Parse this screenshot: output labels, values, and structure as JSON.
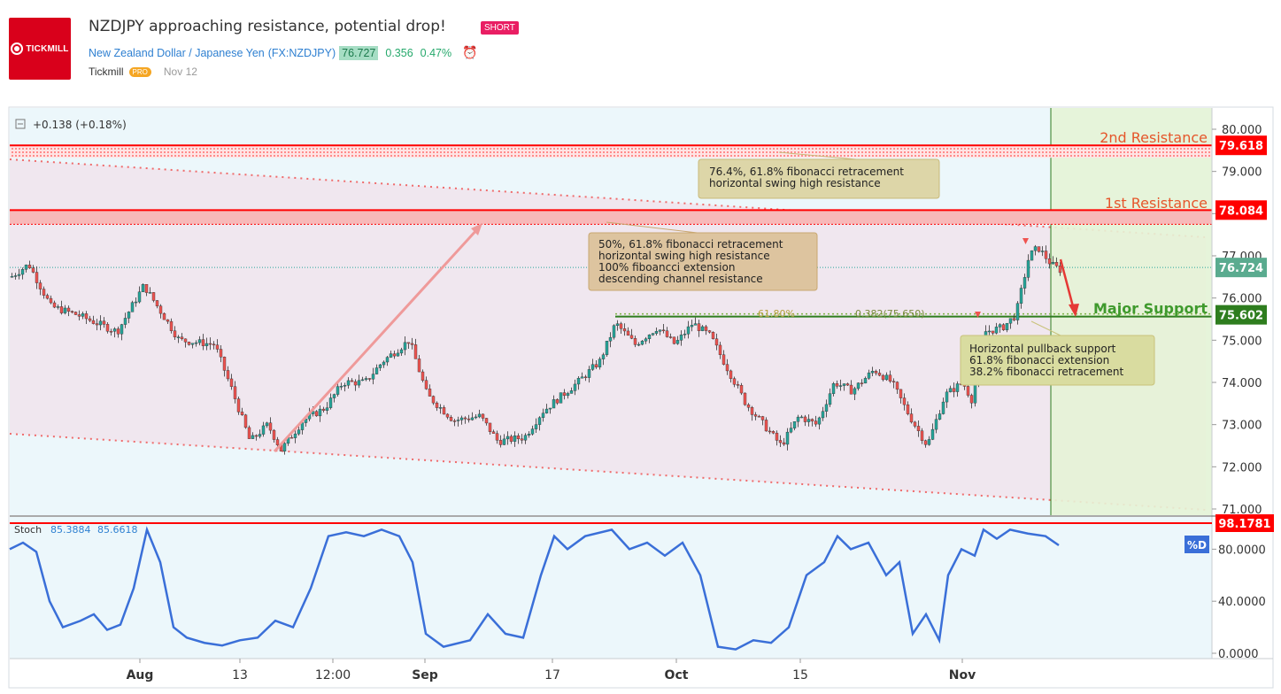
{
  "header": {
    "logo_text": "TICKMILL",
    "title": "NZDJPY approaching resistance, potential drop!",
    "badge": "SHORT",
    "pair_name": "New Zealand Dollar / Japanese Yen",
    "symbol": "(FX:NZDJPY)",
    "last_price": "76.727",
    "change": "0.356",
    "change_pct": "0.47%",
    "author": "Tickmill",
    "author_badge": "PRO",
    "publish_date": "Nov 12"
  },
  "colors": {
    "up": "#26a69a",
    "down": "#ef5350",
    "resistance": "#ff0000",
    "support": "#2e7d1e",
    "stoch": "#3a6fd8",
    "forecast_zone": "#e6f3d6"
  },
  "chart_data": [
    {
      "type": "candlestick",
      "legend_change": "+0.138 (+0.18%)",
      "x_ticks": [
        "Aug",
        "13",
        "12:00",
        "Sep",
        "17",
        "Oct",
        "15",
        "Nov"
      ],
      "y_ticks": [
        "80.000",
        "79.000",
        "78.000",
        "77.000",
        "76.000",
        "75.000",
        "74.000",
        "73.000",
        "72.000",
        "71.000"
      ],
      "ylim": [
        70.85,
        80.3
      ],
      "price_path": [
        [
          0,
          76.5
        ],
        [
          20,
          76.8
        ],
        [
          45,
          75.8
        ],
        [
          75,
          75.6
        ],
        [
          120,
          75.2
        ],
        [
          150,
          76.3
        ],
        [
          190,
          75.0
        ],
        [
          230,
          74.9
        ],
        [
          250,
          73.8
        ],
        [
          270,
          72.6
        ],
        [
          290,
          73.0
        ],
        [
          305,
          72.4
        ],
        [
          330,
          73.1
        ],
        [
          355,
          73.4
        ],
        [
          375,
          74.0
        ],
        [
          400,
          74.0
        ],
        [
          420,
          74.5
        ],
        [
          450,
          75.0
        ],
        [
          470,
          73.7
        ],
        [
          500,
          73.1
        ],
        [
          530,
          73.2
        ],
        [
          550,
          72.6
        ],
        [
          580,
          72.7
        ],
        [
          600,
          73.3
        ],
        [
          640,
          74.0
        ],
        [
          665,
          74.5
        ],
        [
          683,
          75.4
        ],
        [
          705,
          74.9
        ],
        [
          730,
          75.3
        ],
        [
          750,
          74.9
        ],
        [
          770,
          75.4
        ],
        [
          790,
          75.1
        ],
        [
          810,
          74.3
        ],
        [
          830,
          73.5
        ],
        [
          850,
          73.0
        ],
        [
          870,
          72.5
        ],
        [
          890,
          73.2
        ],
        [
          910,
          73.0
        ],
        [
          930,
          74.0
        ],
        [
          950,
          73.8
        ],
        [
          975,
          74.3
        ],
        [
          995,
          74.0
        ],
        [
          1015,
          73.2
        ],
        [
          1035,
          72.5
        ],
        [
          1055,
          73.7
        ],
        [
          1075,
          74.0
        ],
        [
          1085,
          73.6
        ],
        [
          1100,
          75.2
        ],
        [
          1120,
          75.3
        ],
        [
          1135,
          75.6
        ],
        [
          1150,
          77.0
        ],
        [
          1160,
          77.2
        ],
        [
          1175,
          76.8
        ],
        [
          1190,
          76.6
        ],
        [
          1198,
          76.4
        ]
      ],
      "levels": [
        {
          "label": "2nd Resistance",
          "value": 79.618,
          "tag": "79.618"
        },
        {
          "label": "1st Resistance",
          "value": 78.084,
          "tag": "78.084"
        },
        {
          "label": "Major Support",
          "value": 75.602,
          "tag": "75.602"
        }
      ],
      "last_tag": "76.724",
      "fib_labels": [
        "61.80%",
        "0.382(75.650)"
      ],
      "annotations": [
        {
          "name": "annotation-top",
          "lines": [
            "76.4%, 61.8% fibonacci retracement",
            "horizontal swing high resistance"
          ]
        },
        {
          "name": "annotation-middle",
          "lines": [
            "50%, 61.8% fibonacci retracement",
            "horizontal swing high resistance",
            "100% fiboancci extension",
            "descending channel resistance"
          ]
        },
        {
          "name": "annotation-support",
          "lines": [
            "Horizontal pullback support",
            "61.8% fibonacci extension",
            "38.2% fibonacci retracement"
          ]
        }
      ]
    },
    {
      "type": "line",
      "indicator": "Stoch",
      "values_label": [
        "85.3884",
        "85.6618"
      ],
      "last_tag": "98.1781",
      "series_tag": "%D",
      "y_ticks": [
        "80.0000",
        "40.0000",
        "0.0000"
      ],
      "ylim": [
        0,
        100
      ],
      "path": [
        [
          0,
          80
        ],
        [
          15,
          85
        ],
        [
          30,
          78
        ],
        [
          45,
          40
        ],
        [
          60,
          20
        ],
        [
          80,
          25
        ],
        [
          95,
          30
        ],
        [
          110,
          18
        ],
        [
          125,
          22
        ],
        [
          140,
          50
        ],
        [
          155,
          95
        ],
        [
          170,
          70
        ],
        [
          185,
          20
        ],
        [
          200,
          12
        ],
        [
          220,
          8
        ],
        [
          240,
          6
        ],
        [
          260,
          10
        ],
        [
          280,
          12
        ],
        [
          300,
          25
        ],
        [
          320,
          20
        ],
        [
          340,
          50
        ],
        [
          360,
          90
        ],
        [
          380,
          93
        ],
        [
          400,
          90
        ],
        [
          420,
          95
        ],
        [
          440,
          90
        ],
        [
          455,
          70
        ],
        [
          470,
          15
        ],
        [
          490,
          5
        ],
        [
          520,
          10
        ],
        [
          540,
          30
        ],
        [
          560,
          15
        ],
        [
          580,
          12
        ],
        [
          600,
          60
        ],
        [
          615,
          90
        ],
        [
          630,
          80
        ],
        [
          650,
          90
        ],
        [
          680,
          95
        ],
        [
          700,
          80
        ],
        [
          720,
          85
        ],
        [
          740,
          75
        ],
        [
          760,
          85
        ],
        [
          780,
          60
        ],
        [
          800,
          5
        ],
        [
          820,
          3
        ],
        [
          840,
          10
        ],
        [
          860,
          8
        ],
        [
          880,
          20
        ],
        [
          900,
          60
        ],
        [
          920,
          70
        ],
        [
          935,
          90
        ],
        [
          950,
          80
        ],
        [
          970,
          85
        ],
        [
          990,
          60
        ],
        [
          1005,
          70
        ],
        [
          1020,
          15
        ],
        [
          1035,
          30
        ],
        [
          1050,
          10
        ],
        [
          1060,
          60
        ],
        [
          1075,
          80
        ],
        [
          1090,
          75
        ],
        [
          1100,
          95
        ],
        [
          1115,
          88
        ],
        [
          1130,
          95
        ],
        [
          1150,
          92
        ],
        [
          1170,
          90
        ],
        [
          1185,
          83
        ]
      ]
    }
  ]
}
